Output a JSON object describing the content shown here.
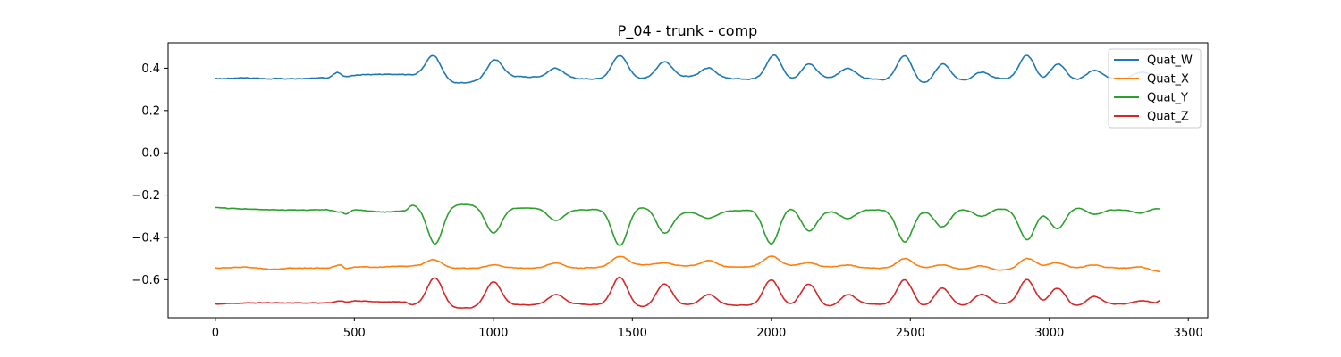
{
  "chart_data": {
    "type": "line",
    "title": "P_04 - trunk - comp",
    "xlabel": "",
    "ylabel": "",
    "xlim": [
      -170,
      3570
    ],
    "ylim": [
      -0.78,
      0.52
    ],
    "x_ticks": [
      0,
      500,
      1000,
      1500,
      2000,
      2500,
      3000,
      3500
    ],
    "x_tick_labels": [
      "0",
      "500",
      "1000",
      "1500",
      "2000",
      "2500",
      "3000",
      "3500"
    ],
    "y_ticks": [
      0.4,
      0.2,
      0.0,
      -0.2,
      -0.4,
      -0.6
    ],
    "y_tick_labels": [
      "0.4",
      "0.2",
      "0.0",
      "−0.2",
      "−0.4",
      "−0.6"
    ],
    "grid": false,
    "legend_position": "top-right",
    "series": [
      {
        "name": "Quat_W",
        "color": "#1f77b4",
        "base": 0.36,
        "noise": 0.004,
        "pre": [
          [
            0,
            0.35
          ],
          [
            100,
            0.355
          ],
          [
            200,
            0.35
          ],
          [
            300,
            0.35
          ],
          [
            400,
            0.355
          ],
          [
            440,
            0.38
          ],
          [
            470,
            0.36
          ],
          [
            520,
            0.37
          ],
          [
            600,
            0.37
          ],
          [
            680,
            0.37
          ]
        ],
        "events": [
          {
            "x": 785,
            "peak": 0.46,
            "dip": 0.33,
            "dipX": 870
          },
          {
            "x": 1005,
            "peak": 0.44,
            "dip": 0.36,
            "dipX": 1090
          },
          {
            "x": 1225,
            "peak": 0.4,
            "dip": 0.35,
            "dipX": 1300
          },
          {
            "x": 1455,
            "peak": 0.46,
            "dip": 0.35,
            "dipX": 1530
          },
          {
            "x": 1615,
            "peak": 0.43,
            "dip": 0.36,
            "dipX": 1690
          },
          {
            "x": 1775,
            "peak": 0.4,
            "dip": 0.35,
            "dipX": 1850
          },
          {
            "x": 2010,
            "peak": 0.46,
            "dip": 0.34,
            "dipX": 2070
          },
          {
            "x": 2135,
            "peak": 0.42,
            "dip": 0.35,
            "dipX": 2200
          },
          {
            "x": 2275,
            "peak": 0.4,
            "dip": 0.35,
            "dipX": 2350
          },
          {
            "x": 2480,
            "peak": 0.46,
            "dip": 0.32,
            "dipX": 2545
          },
          {
            "x": 2615,
            "peak": 0.42,
            "dip": 0.34,
            "dipX": 2690
          },
          {
            "x": 2755,
            "peak": 0.38,
            "dip": 0.35,
            "dipX": 2820
          },
          {
            "x": 2920,
            "peak": 0.46,
            "dip": 0.33,
            "dipX": 2985
          },
          {
            "x": 3030,
            "peak": 0.42,
            "dip": 0.34,
            "dipX": 3095
          },
          {
            "x": 3160,
            "peak": 0.39,
            "dip": 0.35,
            "dipX": 3250
          },
          {
            "x": 3330,
            "peak": 0.38,
            "dip": 0.36,
            "dipX": 3380
          }
        ],
        "end": 0.37
      },
      {
        "name": "Quat_X",
        "color": "#ff7f0e",
        "base": -0.54,
        "noise": 0.003,
        "pre": [
          [
            0,
            -0.545
          ],
          [
            100,
            -0.54
          ],
          [
            200,
            -0.55
          ],
          [
            300,
            -0.545
          ],
          [
            400,
            -0.545
          ],
          [
            450,
            -0.53
          ],
          [
            470,
            -0.545
          ],
          [
            520,
            -0.54
          ],
          [
            600,
            -0.54
          ],
          [
            680,
            -0.535
          ]
        ],
        "events": [
          {
            "x": 785,
            "peak": -0.505,
            "dip": -0.545,
            "dipX": 870
          },
          {
            "x": 1005,
            "peak": -0.53,
            "dip": -0.545,
            "dipX": 1090
          },
          {
            "x": 1225,
            "peak": -0.52,
            "dip": -0.545,
            "dipX": 1300
          },
          {
            "x": 1455,
            "peak": -0.49,
            "dip": -0.53,
            "dipX": 1530
          },
          {
            "x": 1615,
            "peak": -0.52,
            "dip": -0.535,
            "dipX": 1690
          },
          {
            "x": 1775,
            "peak": -0.51,
            "dip": -0.54,
            "dipX": 1850
          },
          {
            "x": 2000,
            "peak": -0.49,
            "dip": -0.535,
            "dipX": 2070
          },
          {
            "x": 2135,
            "peak": -0.52,
            "dip": -0.54,
            "dipX": 2200
          },
          {
            "x": 2275,
            "peak": -0.53,
            "dip": -0.545,
            "dipX": 2350
          },
          {
            "x": 2480,
            "peak": -0.5,
            "dip": -0.545,
            "dipX": 2545
          },
          {
            "x": 2615,
            "peak": -0.53,
            "dip": -0.55,
            "dipX": 2690
          },
          {
            "x": 2755,
            "peak": -0.535,
            "dip": -0.555,
            "dipX": 2820
          },
          {
            "x": 2920,
            "peak": -0.5,
            "dip": -0.54,
            "dipX": 2985
          },
          {
            "x": 3030,
            "peak": -0.52,
            "dip": -0.545,
            "dipX": 3095
          },
          {
            "x": 3160,
            "peak": -0.53,
            "dip": -0.545,
            "dipX": 3250
          },
          {
            "x": 3330,
            "peak": -0.54,
            "dip": -0.56,
            "dipX": 3380
          }
        ],
        "end": -0.565
      },
      {
        "name": "Quat_Y",
        "color": "#2ca02c",
        "base": -0.27,
        "noise": 0.003,
        "pre": [
          [
            0,
            -0.26
          ],
          [
            100,
            -0.265
          ],
          [
            200,
            -0.27
          ],
          [
            300,
            -0.27
          ],
          [
            400,
            -0.27
          ],
          [
            450,
            -0.28
          ],
          [
            470,
            -0.29
          ],
          [
            500,
            -0.27
          ],
          [
            600,
            -0.28
          ],
          [
            680,
            -0.275
          ],
          [
            710,
            -0.245
          ]
        ],
        "events": [
          {
            "x": 790,
            "peak": -0.43,
            "dip": -0.245,
            "dipX": 900
          },
          {
            "x": 1000,
            "peak": -0.38,
            "dip": -0.26,
            "dipX": 1090
          },
          {
            "x": 1225,
            "peak": -0.32,
            "dip": -0.27,
            "dipX": 1300
          },
          {
            "x": 1455,
            "peak": -0.44,
            "dip": -0.255,
            "dipX": 1530
          },
          {
            "x": 1615,
            "peak": -0.38,
            "dip": -0.28,
            "dipX": 1690
          },
          {
            "x": 1775,
            "peak": -0.31,
            "dip": -0.275,
            "dipX": 1850
          },
          {
            "x": 2000,
            "peak": -0.43,
            "dip": -0.255,
            "dipX": 2070
          },
          {
            "x": 2135,
            "peak": -0.37,
            "dip": -0.275,
            "dipX": 2200
          },
          {
            "x": 2275,
            "peak": -0.31,
            "dip": -0.27,
            "dipX": 2350
          },
          {
            "x": 2480,
            "peak": -0.42,
            "dip": -0.27,
            "dipX": 2545
          },
          {
            "x": 2615,
            "peak": -0.35,
            "dip": -0.265,
            "dipX": 2690
          },
          {
            "x": 2755,
            "peak": -0.3,
            "dip": -0.265,
            "dipX": 2820
          },
          {
            "x": 2920,
            "peak": -0.41,
            "dip": -0.265,
            "dipX": 2985
          },
          {
            "x": 3030,
            "peak": -0.36,
            "dip": -0.255,
            "dipX": 3095
          },
          {
            "x": 3160,
            "peak": -0.29,
            "dip": -0.27,
            "dipX": 3250
          },
          {
            "x": 3330,
            "peak": -0.285,
            "dip": -0.26,
            "dipX": 3380
          }
        ],
        "end": -0.265
      },
      {
        "name": "Quat_Z",
        "color": "#d62728",
        "base": -0.71,
        "noise": 0.003,
        "pre": [
          [
            0,
            -0.715
          ],
          [
            100,
            -0.71
          ],
          [
            200,
            -0.71
          ],
          [
            300,
            -0.71
          ],
          [
            400,
            -0.71
          ],
          [
            450,
            -0.7
          ],
          [
            470,
            -0.705
          ],
          [
            520,
            -0.7
          ],
          [
            600,
            -0.705
          ],
          [
            680,
            -0.705
          ],
          [
            710,
            -0.72
          ]
        ],
        "events": [
          {
            "x": 790,
            "peak": -0.59,
            "dip": -0.735,
            "dipX": 880
          },
          {
            "x": 1000,
            "peak": -0.61,
            "dip": -0.72,
            "dipX": 1090
          },
          {
            "x": 1225,
            "peak": -0.67,
            "dip": -0.715,
            "dipX": 1300
          },
          {
            "x": 1455,
            "peak": -0.59,
            "dip": -0.73,
            "dipX": 1530
          },
          {
            "x": 1615,
            "peak": -0.62,
            "dip": -0.72,
            "dipX": 1690
          },
          {
            "x": 1775,
            "peak": -0.67,
            "dip": -0.72,
            "dipX": 1850
          },
          {
            "x": 2000,
            "peak": -0.6,
            "dip": -0.725,
            "dipX": 2070
          },
          {
            "x": 2135,
            "peak": -0.62,
            "dip": -0.73,
            "dipX": 2200
          },
          {
            "x": 2275,
            "peak": -0.67,
            "dip": -0.715,
            "dipX": 2350
          },
          {
            "x": 2480,
            "peak": -0.6,
            "dip": -0.73,
            "dipX": 2545
          },
          {
            "x": 2615,
            "peak": -0.64,
            "dip": -0.725,
            "dipX": 2690
          },
          {
            "x": 2755,
            "peak": -0.67,
            "dip": -0.715,
            "dipX": 2820
          },
          {
            "x": 2920,
            "peak": -0.6,
            "dip": -0.725,
            "dipX": 2985
          },
          {
            "x": 3030,
            "peak": -0.64,
            "dip": -0.73,
            "dipX": 3095
          },
          {
            "x": 3160,
            "peak": -0.68,
            "dip": -0.715,
            "dipX": 3250
          },
          {
            "x": 3330,
            "peak": -0.7,
            "dip": -0.71,
            "dipX": 3380
          }
        ],
        "end": -0.7
      }
    ]
  }
}
